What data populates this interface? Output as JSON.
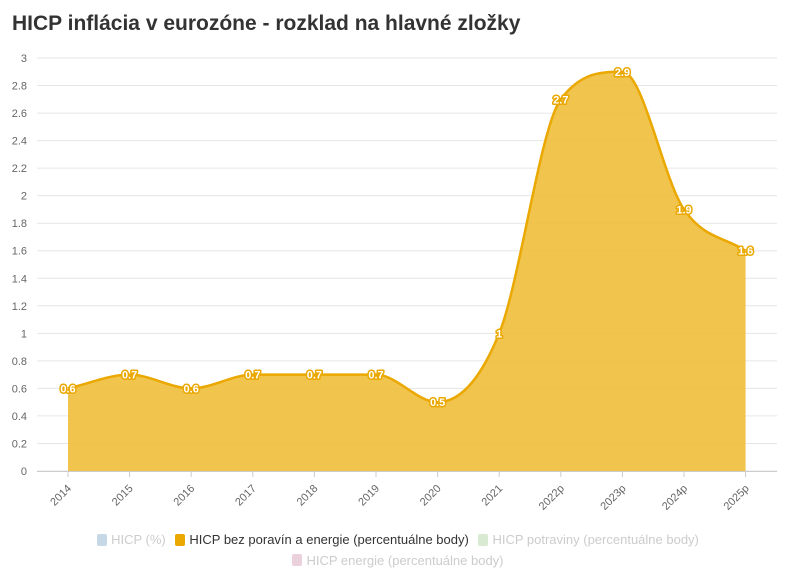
{
  "title": "HICP inflácia v eurozóne - rozklad na hlavné zložky",
  "legend": [
    {
      "label": "HICP (%)",
      "color": "#c6d7e6",
      "active": false
    },
    {
      "label": "HICP bez poravín a energie (percentuálne body)",
      "color": "#eaa800",
      "active": true
    },
    {
      "label": "HICP potraviny (percentuálne body)",
      "color": "#d9ead3",
      "active": false
    },
    {
      "label": "HICP energie (percentuálne body)",
      "color": "#ead1dc",
      "active": false
    }
  ],
  "chart_data": {
    "type": "area",
    "title": "HICP inflácia v eurozóne - rozklad na hlavné zložky",
    "xlabel": "",
    "ylabel": "",
    "ylim": [
      0,
      3
    ],
    "yticks": [
      "0",
      "0.2",
      "0.4",
      "0.6",
      "0.8",
      "1",
      "1.2",
      "1.4",
      "1.6",
      "1.8",
      "2",
      "2.2",
      "2.4",
      "2.6",
      "2.8",
      "3"
    ],
    "categories": [
      "2014",
      "2015",
      "2016",
      "2017",
      "2018",
      "2019",
      "2020",
      "2021",
      "2022p",
      "2023p",
      "2024p",
      "2025p"
    ],
    "series": [
      {
        "name": "HICP bez poravín a energie (percentuálne body)",
        "values": [
          0.6,
          0.7,
          0.6,
          0.7,
          0.7,
          0.7,
          0.5,
          1,
          2.7,
          2.9,
          1.9,
          1.6
        ],
        "labels": [
          "0.6",
          "0.7",
          "0.6",
          "0.7",
          "0.7",
          "0.7",
          "0.5",
          "1",
          "2.7",
          "2.9",
          "1.9",
          "1.6"
        ],
        "color": "#eaa800",
        "fill": "#f0be3b"
      }
    ],
    "grid": true
  }
}
